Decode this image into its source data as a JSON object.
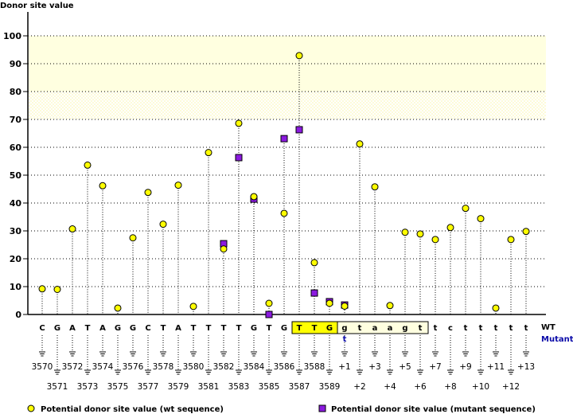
{
  "chart_data": {
    "type": "scatter",
    "title": "",
    "ylabel": "Donor site value",
    "xlabel": "",
    "ylim": [
      0,
      100
    ],
    "yticks": [
      0,
      10,
      20,
      30,
      40,
      50,
      60,
      70,
      80,
      90,
      100
    ],
    "grid": true,
    "highlight_band": {
      "solid": [
        80,
        100
      ],
      "dithered": [
        70,
        80
      ],
      "color": "#ffffe0"
    },
    "categories": [
      "3570",
      "3571",
      "3572",
      "3573",
      "3574",
      "3575",
      "3576",
      "3577",
      "3578",
      "3579",
      "3580",
      "3581",
      "3582",
      "3583",
      "3584",
      "3585",
      "3586",
      "3587",
      "3588",
      "3589",
      "+1",
      "+2",
      "+3",
      "+4",
      "+5",
      "+6",
      "+7",
      "+8",
      "+9",
      "+10",
      "+11",
      "+12",
      "+13"
    ],
    "wt_sequence": [
      "C",
      "G",
      "A",
      "T",
      "A",
      "G",
      "G",
      "C",
      "T",
      "A",
      "T",
      "T",
      "T",
      "T",
      "G",
      "T",
      "G",
      "T",
      "T",
      "G",
      "g",
      "t",
      "a",
      "a",
      "g",
      "t",
      "t",
      "c",
      "t",
      "t",
      "t",
      "t",
      "t"
    ],
    "mutant_sequence_changes": [
      {
        "index": 20,
        "base": "t"
      }
    ],
    "exon_box": {
      "from_index": 17,
      "to_index": 19,
      "color": "#ffff00"
    },
    "intron_box": {
      "from_index": 20,
      "to_index": 25,
      "color": "#ffffe0"
    },
    "row_labels": {
      "wt": "WT",
      "mutant": "Mutant"
    },
    "series": [
      {
        "name": "Potential donor site value (wt sequence)",
        "marker": "circle",
        "color": "#ffff00",
        "values": [
          9.2,
          9.0,
          30.7,
          53.6,
          46.2,
          2.3,
          27.5,
          43.8,
          32.4,
          46.4,
          2.9,
          58.1,
          23.5,
          68.6,
          42.3,
          4.0,
          36.3,
          92.9,
          18.6,
          4.0,
          3.0,
          61.2,
          45.8,
          3.2,
          29.5,
          28.9,
          26.9,
          31.2,
          38.1,
          34.4,
          2.3,
          26.9,
          29.8
        ]
      },
      {
        "name": "Potential donor site value (mutant sequence)",
        "marker": "square",
        "color": "#8b1adf",
        "values": [
          null,
          null,
          null,
          null,
          null,
          null,
          null,
          null,
          null,
          null,
          null,
          null,
          25.4,
          56.3,
          41.4,
          0.0,
          63.1,
          66.3,
          7.7,
          4.6,
          3.4,
          null,
          null,
          null,
          null,
          null,
          null,
          null,
          null,
          null,
          null,
          null,
          null
        ]
      }
    ],
    "legend": "bottom"
  }
}
